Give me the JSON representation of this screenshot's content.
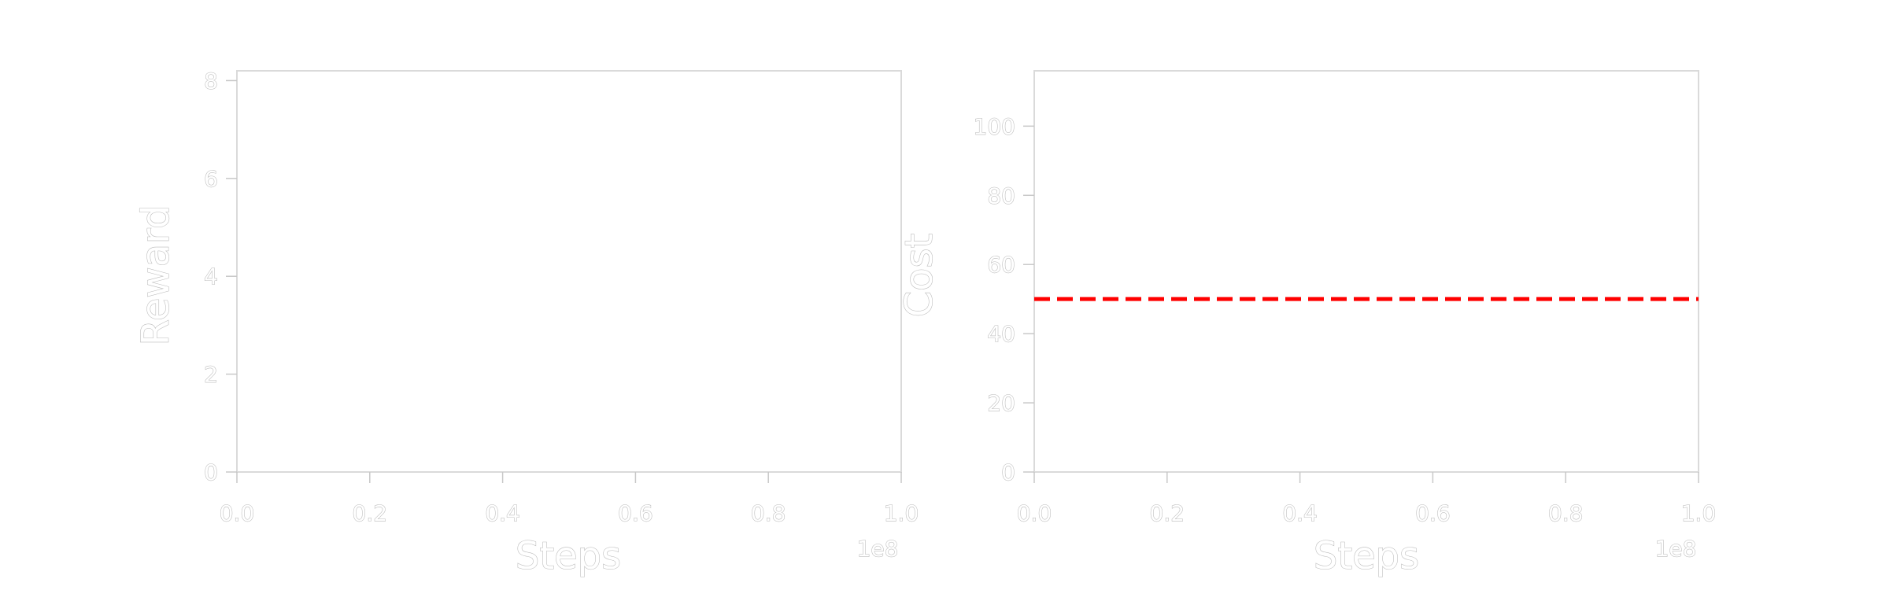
{
  "chart_data": [
    {
      "type": "line",
      "title": "",
      "xlabel": "Steps",
      "ylabel": "Reward",
      "x_offset_label": "1e8",
      "xlim": [
        0,
        1.0
      ],
      "ylim": [
        0,
        8.2
      ],
      "x_ticks": [
        "0.0",
        "0.2",
        "0.4",
        "0.6",
        "0.8",
        "1.0"
      ],
      "x_tick_values": [
        0,
        0.2,
        0.4,
        0.6,
        0.8,
        1.0
      ],
      "y_ticks": [
        "0",
        "2",
        "4",
        "6",
        "8"
      ],
      "y_tick_values": [
        0,
        2,
        4,
        6,
        8
      ],
      "grid": false,
      "series": [],
      "reference_lines": []
    },
    {
      "type": "line",
      "title": "",
      "xlabel": "Steps",
      "ylabel": "Cost",
      "x_offset_label": "1e8",
      "xlim": [
        0,
        1.0
      ],
      "ylim": [
        0,
        116
      ],
      "x_ticks": [
        "0.0",
        "0.2",
        "0.4",
        "0.6",
        "0.8",
        "1.0"
      ],
      "x_tick_values": [
        0,
        0.2,
        0.4,
        0.6,
        0.8,
        1.0
      ],
      "y_ticks": [
        "0",
        "20",
        "40",
        "60",
        "80",
        "100"
      ],
      "y_tick_values": [
        0,
        20,
        40,
        60,
        80,
        100
      ],
      "grid": false,
      "series": [],
      "reference_lines": [
        {
          "orientation": "horizontal",
          "y": 50,
          "x_start": 0,
          "x_end": 1.0,
          "color": "#ff0000",
          "style": "dashed"
        }
      ]
    }
  ]
}
